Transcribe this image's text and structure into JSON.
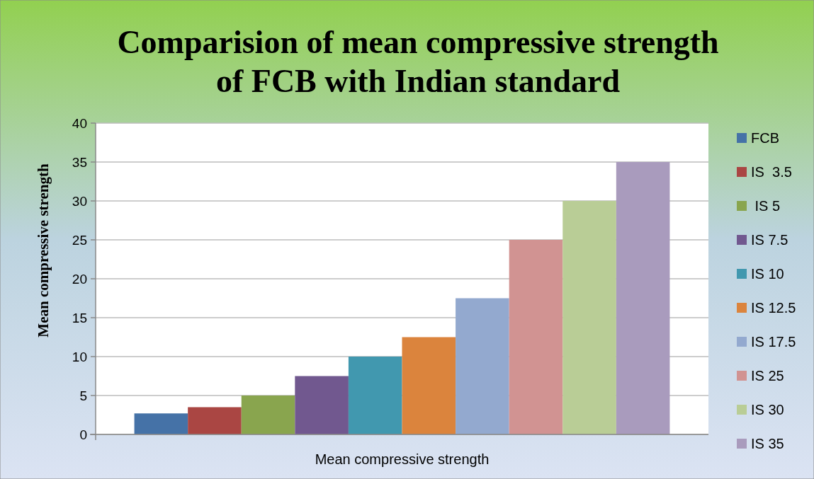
{
  "chart_data": {
    "type": "bar",
    "title": "Comparision of mean compressive strength\nof FCB with Indian standard",
    "ylabel": "Mean compressive strength",
    "xlabel": "Mean compressive strength",
    "categories": [
      null
    ],
    "series": [
      {
        "name": "FCB",
        "color": "#4572a7",
        "values": [
          2.7
        ]
      },
      {
        "name": "IS  3.5",
        "color": "#aa4643",
        "values": [
          3.5
        ]
      },
      {
        "name": " IS 5",
        "color": "#89a54e",
        "values": [
          5
        ]
      },
      {
        "name": "IS 7.5",
        "color": "#71588f",
        "values": [
          7.5
        ]
      },
      {
        "name": "IS 10",
        "color": "#4198af",
        "values": [
          10
        ]
      },
      {
        "name": "IS 12.5",
        "color": "#db843d",
        "values": [
          12.5
        ]
      },
      {
        "name": "IS 17.5",
        "color": "#93a9cf",
        "values": [
          17.5
        ]
      },
      {
        "name": "IS 25",
        "color": "#d19392",
        "values": [
          25
        ]
      },
      {
        "name": "IS 30",
        "color": "#b9cd96",
        "values": [
          30
        ]
      },
      {
        "name": "IS 35",
        "color": "#a99bbd",
        "values": [
          35
        ]
      }
    ],
    "ylim": [
      0,
      40
    ],
    "yticks": [
      0,
      5,
      10,
      15,
      20,
      25,
      30,
      35,
      40
    ],
    "grid": "y",
    "legend": "right"
  }
}
